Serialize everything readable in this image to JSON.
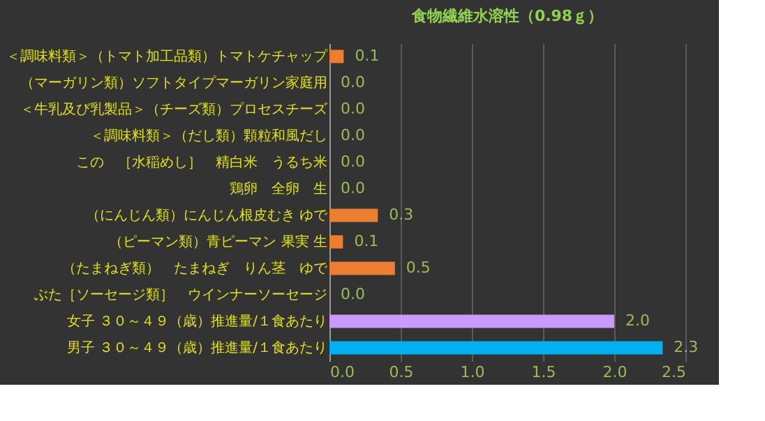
{
  "chart_data": {
    "type": "bar",
    "orientation": "horizontal",
    "title": "食物繊維水溶性（0.98ｇ）",
    "categories": [
      "＜調味料類＞（トマト加工品類）トマトケチャップ",
      "（マーガリン類）ソフトタイプマーガリン家庭用",
      "＜牛乳及び乳製品＞（チーズ類）プロセスチーズ",
      "＜調味料類＞（だし類）顆粒和風だし",
      "この　［水稲めし］　精白米　うるち米",
      "鶏卵　全卵　生",
      "（にんじん類）にんじん根皮むき ゆで",
      "（ピーマン類）青ピーマン 果実 生",
      "（たまねぎ類）　たまねぎ　りん茎　ゆで",
      "ぶた［ソーセージ類］　ウインナーソーセージ",
      "女子 ３０～４９（歳）推進量/１食あたり",
      "男子 ３０～４９（歳）推進量/１食あたり"
    ],
    "values": [
      0.1,
      0,
      0,
      0,
      0,
      0,
      0.34,
      0.095,
      0.46,
      0,
      2.0,
      2.34
    ],
    "value_labels": [
      "0.1",
      "0.0",
      "0.0",
      "0.0",
      "0.0",
      "0.0",
      "0.3",
      "0.1",
      "0.5",
      "0.0",
      "2.0",
      "2.3"
    ],
    "colors": [
      "#ed7d31",
      "#ed7d31",
      "#ed7d31",
      "#ed7d31",
      "#ed7d31",
      "#ed7d31",
      "#ed7d31",
      "#ed7d31",
      "#ed7d31",
      "#ed7d31",
      "#cc99ff",
      "#00b0f0"
    ],
    "xlim": [
      0,
      2.5
    ],
    "xticks": [
      {
        "value": 0,
        "label": "0.0"
      },
      0.5,
      {
        "value": 1,
        "label": "1.0"
      },
      1.5,
      {
        "value": 2,
        "label": "2.0"
      },
      2.5
    ],
    "grid": "x"
  }
}
